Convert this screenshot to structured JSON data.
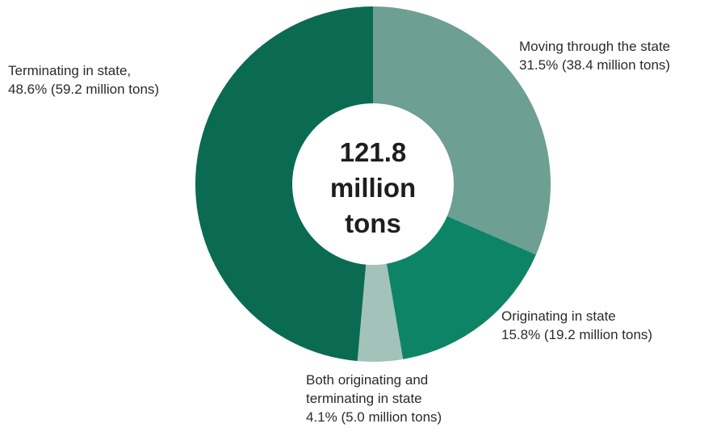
{
  "chart_data": {
    "type": "pie",
    "variant": "donut",
    "title": "",
    "center_label": [
      "121.8",
      "million",
      "tons"
    ],
    "total": 121.8,
    "unit": "million tons",
    "start_angle_deg": 0,
    "direction": "clockwise",
    "slices": [
      {
        "name": "Moving through the state",
        "percent": 31.5,
        "value": 38.4,
        "color": "#6d9f92",
        "label_lines": [
          "Moving through the state",
          "31.5% (38.4 million tons)"
        ]
      },
      {
        "name": "Originating in state",
        "percent": 15.8,
        "value": 19.2,
        "color": "#0e8467",
        "label_lines": [
          "Originating in state",
          "15.8% (19.2 million tons)"
        ]
      },
      {
        "name": "Both originating and terminating in state",
        "percent": 4.1,
        "value": 5.0,
        "color": "#a3c2b9",
        "label_lines": [
          "Both originating and",
          "terminating in state",
          "4.1% (5.0 million tons)"
        ]
      },
      {
        "name": "Terminating in state",
        "percent": 48.6,
        "value": 59.2,
        "color": "#0a6b52",
        "label_lines": [
          "Terminating in state,",
          "48.6% (59.2 million tons)"
        ]
      }
    ]
  }
}
